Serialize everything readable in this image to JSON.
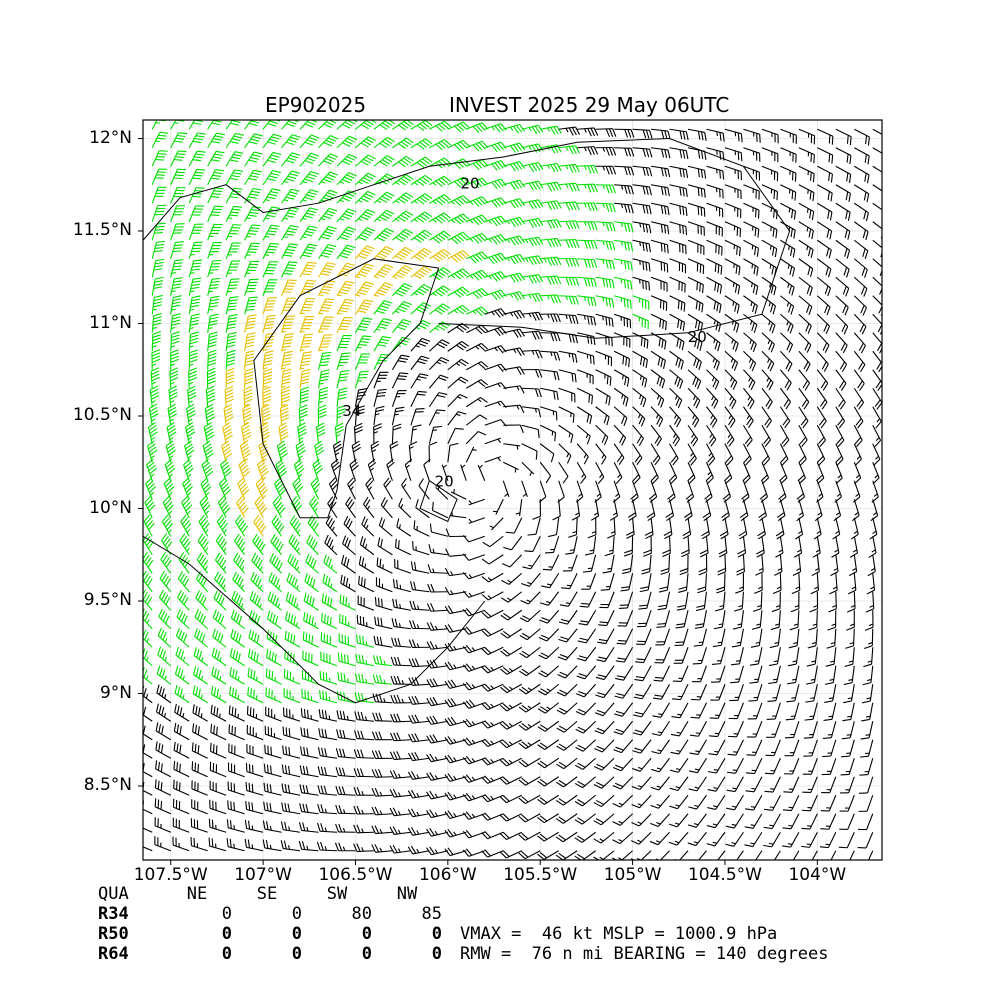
{
  "title": {
    "left": "EP902025",
    "right": "INVEST 2025 29 May 06UTC"
  },
  "map": {
    "lon_range": [
      -107.65,
      -103.65
    ],
    "lat_range": [
      8.1,
      12.1
    ],
    "lat_ticks": [
      {
        "value": 12.0,
        "label": "12°N"
      },
      {
        "value": 11.5,
        "label": "11.5°N"
      },
      {
        "value": 11.0,
        "label": "11°N"
      },
      {
        "value": 10.5,
        "label": "10.5°N"
      },
      {
        "value": 10.0,
        "label": "10°N"
      },
      {
        "value": 9.5,
        "label": "9.5°N"
      },
      {
        "value": 9.0,
        "label": "9°N"
      },
      {
        "value": 8.5,
        "label": "8.5°N"
      }
    ],
    "lon_ticks": [
      {
        "value": -107.5,
        "label": "107.5°W"
      },
      {
        "value": -107.0,
        "label": "107°W"
      },
      {
        "value": -106.5,
        "label": "106.5°W"
      },
      {
        "value": -106.0,
        "label": "106°W"
      },
      {
        "value": -105.5,
        "label": "105.5°W"
      },
      {
        "value": -105.0,
        "label": "105°W"
      },
      {
        "value": -104.5,
        "label": "104.5°W"
      },
      {
        "value": -104.0,
        "label": "104°W"
      }
    ],
    "grid": true,
    "center": {
      "lon": -105.8,
      "lat": 10.15
    },
    "vmax_kt": 46,
    "rmw_nmi": 76,
    "bearing_deg": 140,
    "barb_colors": {
      "below_34": "#000000",
      "r34_to_50": "#00e000",
      "above_50": "#e6c000"
    },
    "contour_labels": [
      {
        "text": "20",
        "lon": -105.88,
        "lat": 11.73
      },
      {
        "text": "20",
        "lon": -104.65,
        "lat": 10.9
      },
      {
        "text": "20",
        "lon": -106.02,
        "lat": 10.12
      },
      {
        "text": "34",
        "lon": -106.52,
        "lat": 10.5
      }
    ]
  },
  "wind_radii": {
    "header": [
      "QUA",
      "NE",
      "SE",
      "SW",
      "NW"
    ],
    "rows": [
      {
        "label": "R34",
        "values": [
          "0",
          "0",
          "80",
          "85"
        ]
      },
      {
        "label": "R50",
        "values": [
          "0",
          "0",
          "0",
          "0"
        ]
      },
      {
        "label": "R64",
        "values": [
          "0",
          "0",
          "0",
          "0"
        ]
      }
    ]
  },
  "info": {
    "line1": "VMAX =  46 kt MSLP = 1000.9 hPa",
    "line2": "RMW =  76 n mi BEARING = 140 degrees"
  }
}
